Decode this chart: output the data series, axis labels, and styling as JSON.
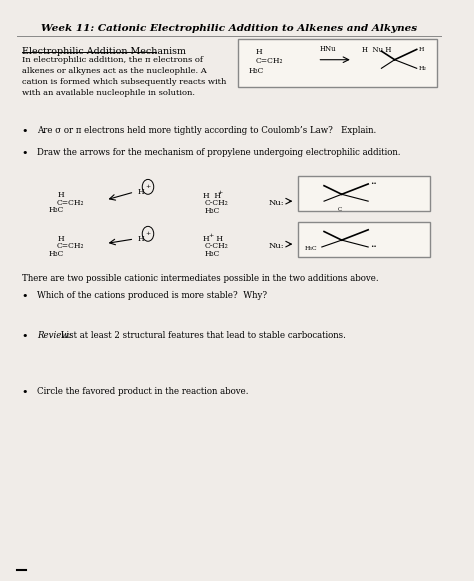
{
  "title": "Week 11: Cationic Electrophilic Addition to Alkenes and Alkynes",
  "bg_color": "#f0ece8",
  "section1_heading": "Electrophilic Addition Mechanism",
  "section1_text": "In electrophilic addition, the π electrons of\nalkenes or alkynes act as the nucleophile. A\ncation is formed which subsequently reacts with\nwith an available nucleophile in solution.",
  "bullet1": "Are σ or π electrons held more tightly according to Coulomb’s Law?   Explain.",
  "bullet2": "Draw the arrows for the mechanism of propylene undergoing electrophilic addition.",
  "section2_text": "There are two possible cationic intermediates possible in the two additions above.",
  "bullet3": "Which of the cations produced is more stable?  Why?",
  "bullet4_italic": "Review:",
  "bullet4_rest": " List at least 2 structural features that lead to stable carbocations.",
  "bullet5": "Circle the favored product in the reaction above."
}
